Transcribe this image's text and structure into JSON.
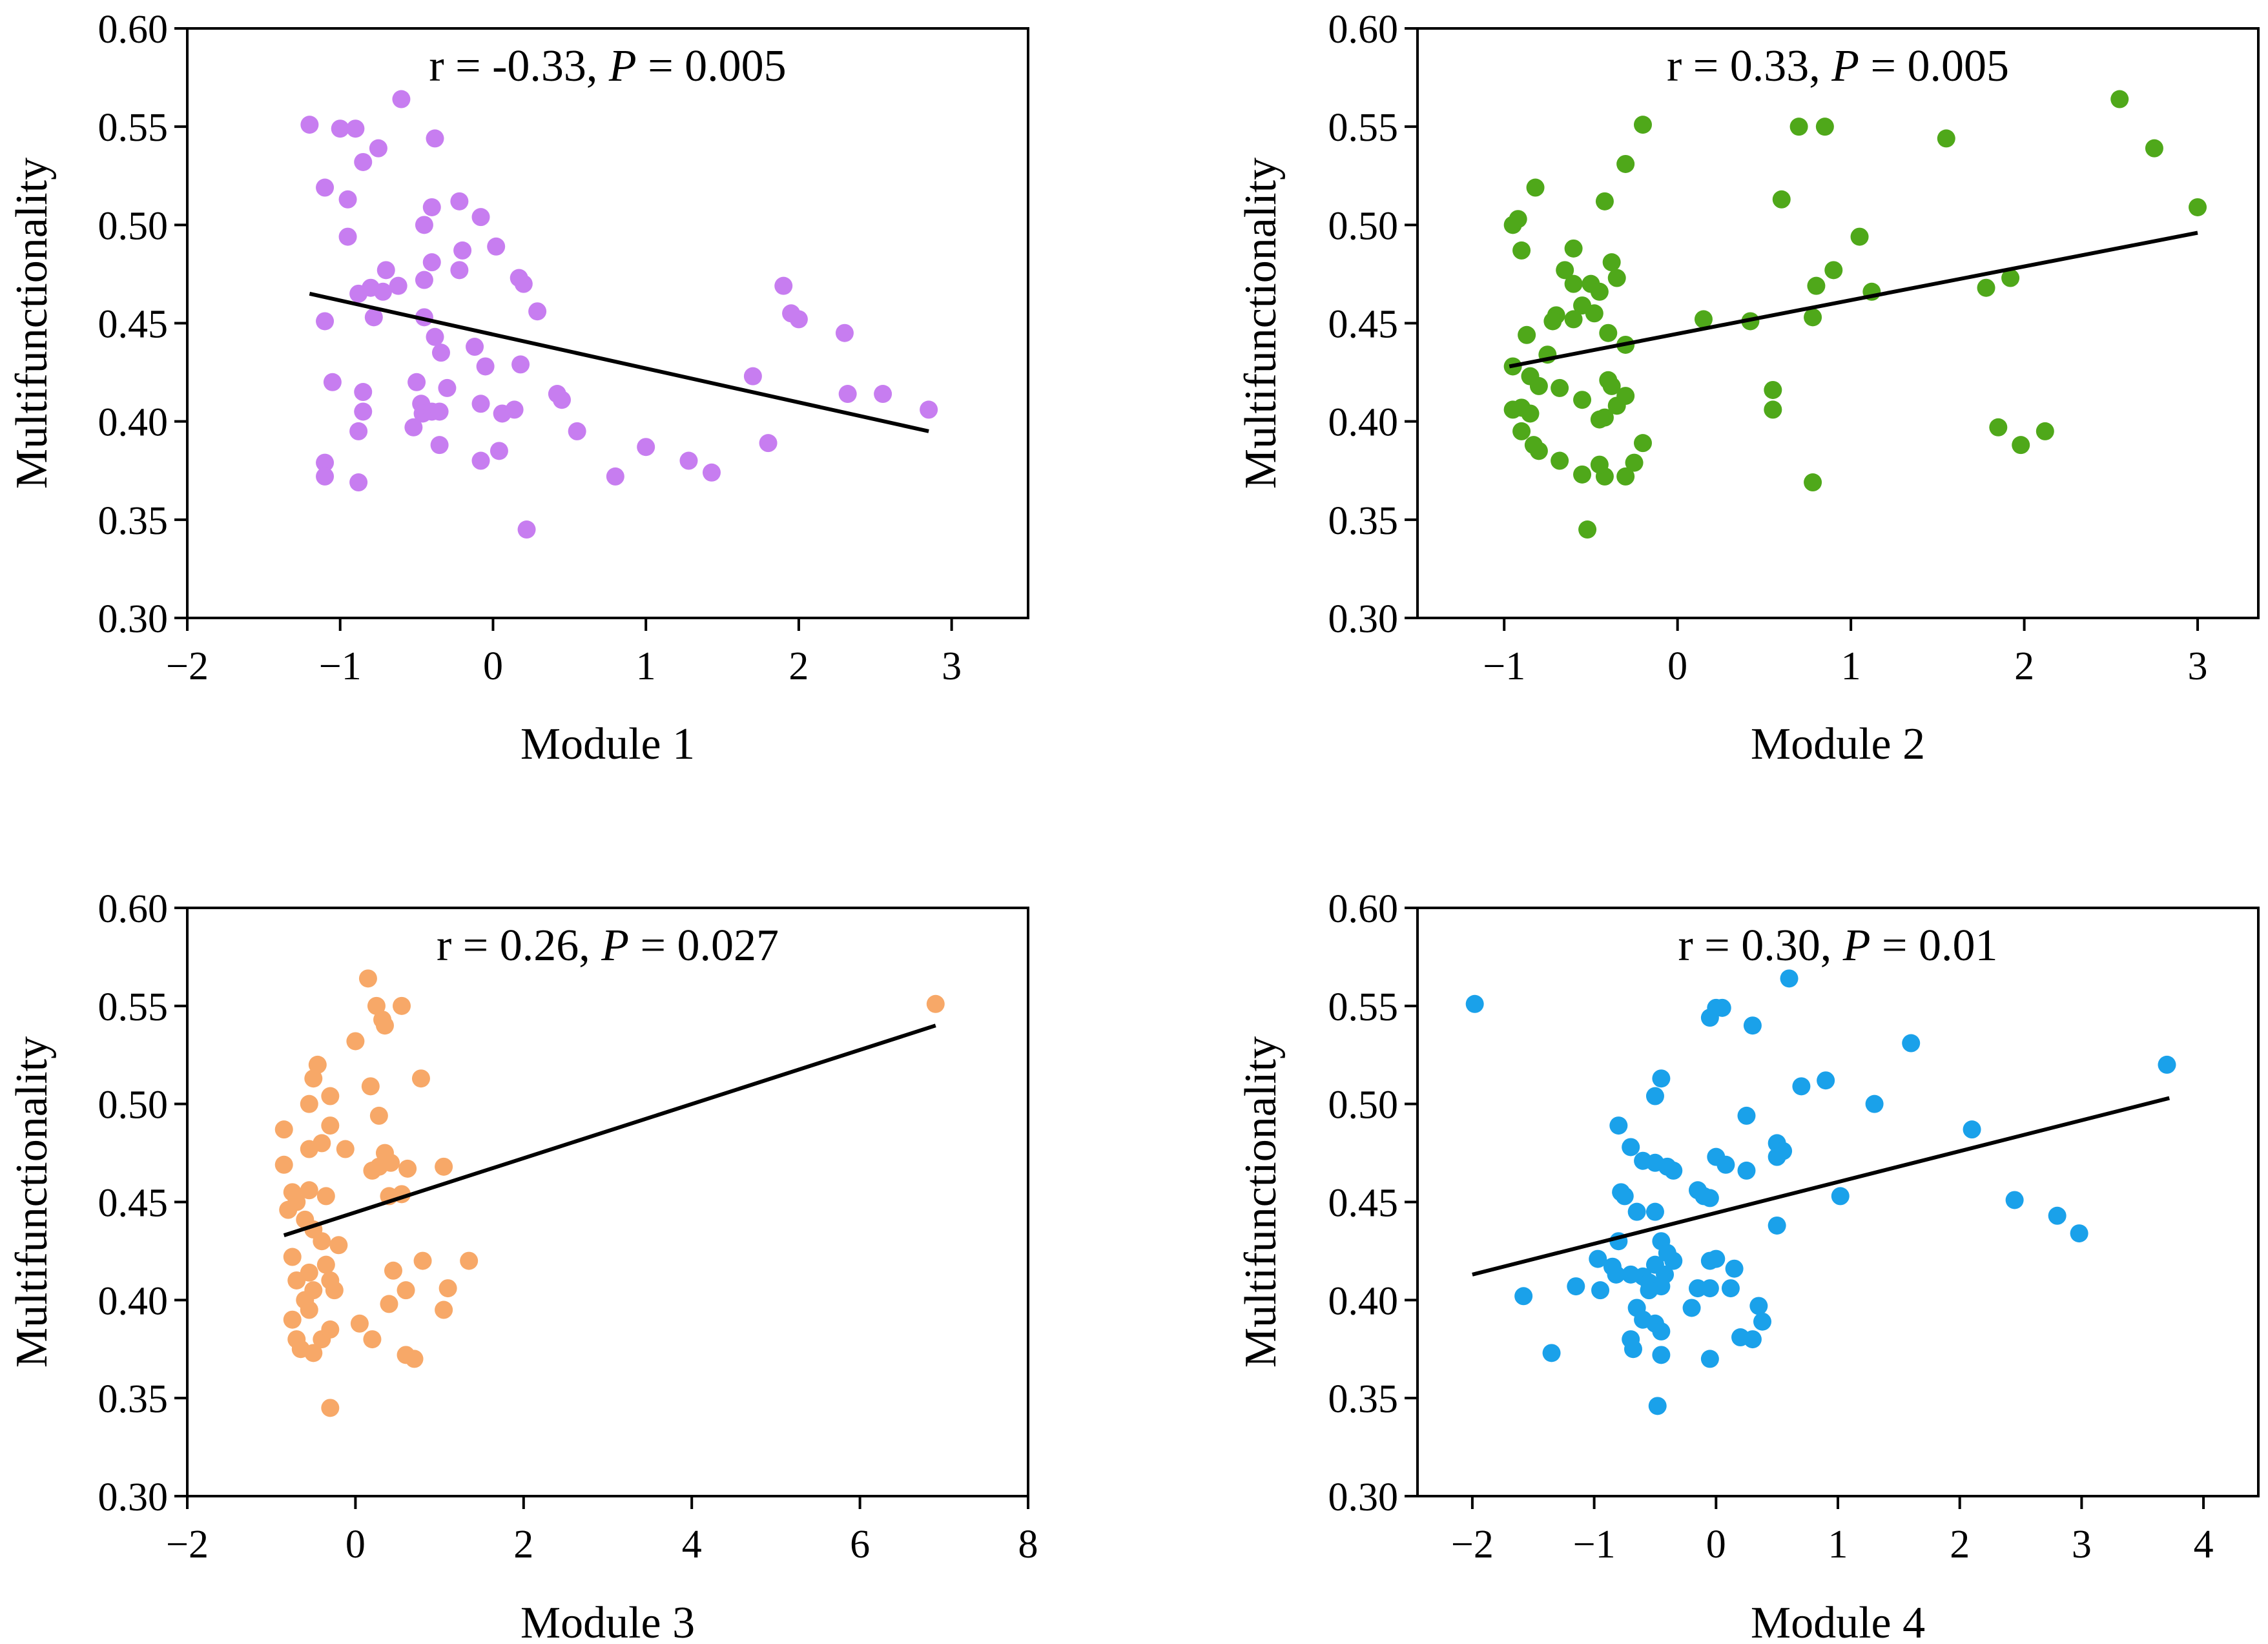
{
  "chart_data": [
    {
      "type": "scatter",
      "xlabel": "Module 1",
      "ylabel": "Multifunctionality",
      "xlim": [
        -2,
        3.5
      ],
      "ylim": [
        0.3,
        0.6
      ],
      "xticks": [
        "−2",
        "−1",
        "0",
        "1",
        "2",
        "3"
      ],
      "xtick_values": [
        -2,
        -1,
        0,
        1,
        2,
        3
      ],
      "yticks": [
        "0.30",
        "0.35",
        "0.40",
        "0.45",
        "0.50",
        "0.55",
        "0.60"
      ],
      "ytick_values": [
        0.3,
        0.35,
        0.4,
        0.45,
        0.5,
        0.55,
        0.6
      ],
      "annotation": {
        "prefix": "r = -0.33, ",
        "italic": "P",
        "suffix": " = 0.005"
      },
      "color": "#c77df0",
      "fit": {
        "x": [
          -1.2,
          2.85
        ],
        "y": [
          0.465,
          0.395
        ]
      },
      "points": [
        [
          -1.2,
          0.551
        ],
        [
          -0.6,
          0.564
        ],
        [
          -1.0,
          0.549
        ],
        [
          -0.9,
          0.549
        ],
        [
          -0.75,
          0.539
        ],
        [
          -0.38,
          0.544
        ],
        [
          -0.85,
          0.532
        ],
        [
          -1.1,
          0.519
        ],
        [
          -0.95,
          0.513
        ],
        [
          -0.22,
          0.512
        ],
        [
          -0.4,
          0.509
        ],
        [
          -0.45,
          0.5
        ],
        [
          -0.08,
          0.504
        ],
        [
          -0.95,
          0.494
        ],
        [
          0.02,
          0.489
        ],
        [
          -0.2,
          0.487
        ],
        [
          -0.4,
          0.481
        ],
        [
          -0.7,
          0.477
        ],
        [
          -0.22,
          0.477
        ],
        [
          -0.45,
          0.472
        ],
        [
          -0.62,
          0.469
        ],
        [
          0.17,
          0.473
        ],
        [
          0.2,
          0.47
        ],
        [
          -0.8,
          0.468
        ],
        [
          -0.72,
          0.466
        ],
        [
          -0.88,
          0.465
        ],
        [
          -0.78,
          0.453
        ],
        [
          -0.45,
          0.453
        ],
        [
          0.29,
          0.456
        ],
        [
          -1.1,
          0.451
        ],
        [
          -0.38,
          0.443
        ],
        [
          -0.34,
          0.435
        ],
        [
          -0.12,
          0.438
        ],
        [
          -0.05,
          0.428
        ],
        [
          0.18,
          0.429
        ],
        [
          -1.05,
          0.42
        ],
        [
          -0.5,
          0.42
        ],
        [
          -0.3,
          0.417
        ],
        [
          -0.85,
          0.415
        ],
        [
          0.42,
          0.414
        ],
        [
          0.45,
          0.411
        ],
        [
          -0.47,
          0.409
        ],
        [
          -0.08,
          0.409
        ],
        [
          -0.85,
          0.405
        ],
        [
          -0.46,
          0.404
        ],
        [
          -0.4,
          0.405
        ],
        [
          0.06,
          0.404
        ],
        [
          0.14,
          0.406
        ],
        [
          -0.35,
          0.405
        ],
        [
          -0.52,
          0.397
        ],
        [
          -0.88,
          0.395
        ],
        [
          0.55,
          0.395
        ],
        [
          -0.35,
          0.388
        ],
        [
          0.04,
          0.385
        ],
        [
          1.0,
          0.387
        ],
        [
          1.8,
          0.389
        ],
        [
          -1.1,
          0.379
        ],
        [
          -0.08,
          0.38
        ],
        [
          1.28,
          0.38
        ],
        [
          -1.1,
          0.372
        ],
        [
          -0.88,
          0.369
        ],
        [
          0.8,
          0.372
        ],
        [
          1.43,
          0.374
        ],
        [
          0.22,
          0.345
        ],
        [
          1.9,
          0.469
        ],
        [
          1.95,
          0.455
        ],
        [
          2.0,
          0.452
        ],
        [
          1.7,
          0.423
        ],
        [
          2.3,
          0.445
        ],
        [
          2.32,
          0.414
        ],
        [
          2.55,
          0.414
        ],
        [
          2.85,
          0.406
        ]
      ]
    },
    {
      "type": "scatter",
      "xlabel": "Module 2",
      "ylabel": "Multifunctionality",
      "xlim": [
        -1.5,
        3.35
      ],
      "ylim": [
        0.3,
        0.6
      ],
      "xticks": [
        "−1",
        "0",
        "1",
        "2",
        "3"
      ],
      "xtick_values": [
        -1,
        0,
        1,
        2,
        3
      ],
      "yticks": [
        "0.30",
        "0.35",
        "0.40",
        "0.45",
        "0.50",
        "0.55",
        "0.60"
      ],
      "ytick_values": [
        0.3,
        0.35,
        0.4,
        0.45,
        0.5,
        0.55,
        0.6
      ],
      "annotation": {
        "prefix": "r = 0.33, ",
        "italic": "P",
        "suffix": " = 0.005"
      },
      "color": "#4fa81a",
      "fit": {
        "x": [
          -0.97,
          3.0
        ],
        "y": [
          0.428,
          0.496
        ]
      },
      "points": [
        [
          -0.95,
          0.5
        ],
        [
          -0.92,
          0.503
        ],
        [
          -0.82,
          0.519
        ],
        [
          -0.9,
          0.487
        ],
        [
          -0.2,
          0.551
        ],
        [
          -0.3,
          0.531
        ],
        [
          -0.42,
          0.512
        ],
        [
          -0.38,
          0.481
        ],
        [
          -0.35,
          0.473
        ],
        [
          -0.6,
          0.488
        ],
        [
          -0.65,
          0.477
        ],
        [
          -0.6,
          0.47
        ],
        [
          -0.5,
          0.47
        ],
        [
          -0.45,
          0.466
        ],
        [
          -0.55,
          0.459
        ],
        [
          -0.7,
          0.454
        ],
        [
          -0.72,
          0.451
        ],
        [
          -0.6,
          0.452
        ],
        [
          -0.48,
          0.455
        ],
        [
          -0.4,
          0.445
        ],
        [
          -0.3,
          0.439
        ],
        [
          -0.75,
          0.434
        ],
        [
          -0.87,
          0.444
        ],
        [
          -0.95,
          0.428
        ],
        [
          -0.85,
          0.423
        ],
        [
          -0.8,
          0.418
        ],
        [
          -0.68,
          0.417
        ],
        [
          -0.4,
          0.421
        ],
        [
          -0.38,
          0.418
        ],
        [
          -0.3,
          0.413
        ],
        [
          -0.35,
          0.408
        ],
        [
          -0.55,
          0.411
        ],
        [
          -0.95,
          0.406
        ],
        [
          -0.9,
          0.407
        ],
        [
          -0.85,
          0.404
        ],
        [
          -0.42,
          0.402
        ],
        [
          -0.45,
          0.401
        ],
        [
          -0.9,
          0.395
        ],
        [
          -0.83,
          0.388
        ],
        [
          -0.8,
          0.385
        ],
        [
          -0.2,
          0.389
        ],
        [
          -0.25,
          0.379
        ],
        [
          -0.68,
          0.38
        ],
        [
          -0.55,
          0.373
        ],
        [
          -0.3,
          0.372
        ],
        [
          -0.42,
          0.372
        ],
        [
          -0.45,
          0.378
        ],
        [
          -0.52,
          0.345
        ],
        [
          0.15,
          0.452
        ],
        [
          0.42,
          0.451
        ],
        [
          0.55,
          0.416
        ],
        [
          0.55,
          0.406
        ],
        [
          0.6,
          0.513
        ],
        [
          0.7,
          0.55
        ],
        [
          0.85,
          0.55
        ],
        [
          0.8,
          0.469
        ],
        [
          0.9,
          0.477
        ],
        [
          0.78,
          0.453
        ],
        [
          0.78,
          0.369
        ],
        [
          1.05,
          0.494
        ],
        [
          1.12,
          0.466
        ],
        [
          1.55,
          0.544
        ],
        [
          1.78,
          0.468
        ],
        [
          1.85,
          0.397
        ],
        [
          1.92,
          0.473
        ],
        [
          1.98,
          0.388
        ],
        [
          2.12,
          0.395
        ],
        [
          2.55,
          0.564
        ],
        [
          2.75,
          0.539
        ],
        [
          3.0,
          0.509
        ]
      ]
    },
    {
      "type": "scatter",
      "xlabel": "Module 3",
      "ylabel": "Multifunctionality",
      "xlim": [
        -2,
        8
      ],
      "ylim": [
        0.3,
        0.6
      ],
      "xticks": [
        "−2",
        "0",
        "2",
        "4",
        "6",
        "8"
      ],
      "xtick_values": [
        -2,
        0,
        2,
        4,
        6,
        8
      ],
      "yticks": [
        "0.30",
        "0.35",
        "0.40",
        "0.45",
        "0.50",
        "0.55",
        "0.60"
      ],
      "ytick_values": [
        0.3,
        0.35,
        0.4,
        0.45,
        0.5,
        0.55,
        0.6
      ],
      "annotation": {
        "prefix": "r = 0.26, ",
        "italic": "P",
        "suffix": " = 0.027"
      },
      "color": "#f7a868",
      "fit": {
        "x": [
          -0.85,
          6.9
        ],
        "y": [
          0.433,
          0.54
        ]
      },
      "points": [
        [
          0.15,
          0.564
        ],
        [
          0.25,
          0.55
        ],
        [
          0.32,
          0.543
        ],
        [
          0.35,
          0.54
        ],
        [
          0.55,
          0.55
        ],
        [
          0.0,
          0.532
        ],
        [
          -0.45,
          0.52
        ],
        [
          -0.5,
          0.513
        ],
        [
          -0.3,
          0.504
        ],
        [
          0.18,
          0.509
        ],
        [
          0.78,
          0.513
        ],
        [
          -0.55,
          0.5
        ],
        [
          0.28,
          0.494
        ],
        [
          -0.85,
          0.487
        ],
        [
          -0.4,
          0.48
        ],
        [
          -0.3,
          0.489
        ],
        [
          -0.55,
          0.477
        ],
        [
          -0.12,
          0.477
        ],
        [
          0.35,
          0.475
        ],
        [
          0.42,
          0.47
        ],
        [
          0.2,
          0.466
        ],
        [
          0.28,
          0.468
        ],
        [
          -0.85,
          0.469
        ],
        [
          -0.75,
          0.455
        ],
        [
          -0.55,
          0.456
        ],
        [
          -0.35,
          0.453
        ],
        [
          -0.7,
          0.45
        ],
        [
          -0.8,
          0.446
        ],
        [
          0.62,
          0.467
        ],
        [
          1.05,
          0.468
        ],
        [
          0.4,
          0.453
        ],
        [
          0.55,
          0.454
        ],
        [
          -0.6,
          0.441
        ],
        [
          -0.5,
          0.436
        ],
        [
          -0.4,
          0.43
        ],
        [
          -0.2,
          0.428
        ],
        [
          -0.75,
          0.422
        ],
        [
          -0.55,
          0.414
        ],
        [
          -0.35,
          0.418
        ],
        [
          -0.3,
          0.41
        ],
        [
          0.8,
          0.42
        ],
        [
          1.35,
          0.42
        ],
        [
          0.45,
          0.415
        ],
        [
          -0.7,
          0.41
        ],
        [
          -0.5,
          0.405
        ],
        [
          -0.25,
          0.405
        ],
        [
          -0.6,
          0.4
        ],
        [
          0.6,
          0.405
        ],
        [
          1.1,
          0.406
        ],
        [
          0.4,
          0.398
        ],
        [
          -0.55,
          0.395
        ],
        [
          1.05,
          0.395
        ],
        [
          -0.75,
          0.39
        ],
        [
          0.05,
          0.388
        ],
        [
          -0.7,
          0.38
        ],
        [
          -0.4,
          0.38
        ],
        [
          -0.3,
          0.385
        ],
        [
          0.2,
          0.38
        ],
        [
          -0.65,
          0.375
        ],
        [
          -0.5,
          0.373
        ],
        [
          0.6,
          0.372
        ],
        [
          0.7,
          0.37
        ],
        [
          -0.3,
          0.345
        ],
        [
          6.9,
          0.551
        ]
      ]
    },
    {
      "type": "scatter",
      "xlabel": "Module 4",
      "ylabel": "Multifunctionality",
      "xlim": [
        -2.45,
        4.45
      ],
      "ylim": [
        0.3,
        0.6
      ],
      "xticks": [
        "−2",
        "−1",
        "0",
        "1",
        "2",
        "3",
        "4"
      ],
      "xtick_values": [
        -2,
        -1,
        0,
        1,
        2,
        3,
        4
      ],
      "yticks": [
        "0.30",
        "0.35",
        "0.40",
        "0.45",
        "0.50",
        "0.55",
        "0.60"
      ],
      "ytick_values": [
        0.3,
        0.35,
        0.4,
        0.45,
        0.5,
        0.55,
        0.6
      ],
      "annotation": {
        "prefix": "r = 0.30, ",
        "italic": "P",
        "suffix": " = 0.01"
      },
      "color": "#1aa1ea",
      "fit": {
        "x": [
          -2.0,
          3.72
        ],
        "y": [
          0.413,
          0.503
        ]
      },
      "points": [
        [
          -1.98,
          0.551
        ],
        [
          -1.58,
          0.402
        ],
        [
          -1.35,
          0.373
        ],
        [
          -1.15,
          0.407
        ],
        [
          -0.95,
          0.405
        ],
        [
          -0.97,
          0.421
        ],
        [
          -0.8,
          0.489
        ],
        [
          -0.78,
          0.455
        ],
        [
          -0.75,
          0.453
        ],
        [
          -0.8,
          0.43
        ],
        [
          -0.85,
          0.417
        ],
        [
          -0.82,
          0.413
        ],
        [
          -0.7,
          0.478
        ],
        [
          -0.6,
          0.471
        ],
        [
          -0.5,
          0.47
        ],
        [
          -0.4,
          0.468
        ],
        [
          -0.35,
          0.466
        ],
        [
          -0.5,
          0.445
        ],
        [
          -0.65,
          0.445
        ],
        [
          -0.45,
          0.43
        ],
        [
          -0.4,
          0.424
        ],
        [
          -0.35,
          0.42
        ],
        [
          -0.5,
          0.418
        ],
        [
          -0.6,
          0.412
        ],
        [
          -0.7,
          0.413
        ],
        [
          -0.55,
          0.409
        ],
        [
          -0.45,
          0.407
        ],
        [
          -0.42,
          0.413
        ],
        [
          -0.55,
          0.405
        ],
        [
          -0.65,
          0.396
        ],
        [
          -0.6,
          0.39
        ],
        [
          -0.5,
          0.388
        ],
        [
          -0.45,
          0.384
        ],
        [
          -0.7,
          0.38
        ],
        [
          -0.68,
          0.375
        ],
        [
          -0.45,
          0.372
        ],
        [
          -0.48,
          0.346
        ],
        [
          -0.5,
          0.504
        ],
        [
          -0.45,
          0.513
        ],
        [
          -0.05,
          0.544
        ],
        [
          0.0,
          0.549
        ],
        [
          0.05,
          0.549
        ],
        [
          0.3,
          0.54
        ],
        [
          0.6,
          0.564
        ],
        [
          0.7,
          0.509
        ],
        [
          0.9,
          0.512
        ],
        [
          0.25,
          0.494
        ],
        [
          0.5,
          0.48
        ],
        [
          0.55,
          0.476
        ],
        [
          0.5,
          0.473
        ],
        [
          0.0,
          0.473
        ],
        [
          0.08,
          0.469
        ],
        [
          0.25,
          0.466
        ],
        [
          -0.15,
          0.456
        ],
        [
          -0.05,
          0.452
        ],
        [
          -0.1,
          0.453
        ],
        [
          0.5,
          0.438
        ],
        [
          0.0,
          0.421
        ],
        [
          -0.05,
          0.42
        ],
        [
          0.15,
          0.416
        ],
        [
          0.12,
          0.406
        ],
        [
          -0.05,
          0.406
        ],
        [
          -0.15,
          0.406
        ],
        [
          0.35,
          0.397
        ],
        [
          0.38,
          0.389
        ],
        [
          -0.2,
          0.396
        ],
        [
          0.2,
          0.381
        ],
        [
          0.3,
          0.38
        ],
        [
          -0.05,
          0.37
        ],
        [
          1.02,
          0.453
        ],
        [
          1.3,
          0.5
        ],
        [
          1.6,
          0.531
        ],
        [
          2.1,
          0.487
        ],
        [
          2.45,
          0.451
        ],
        [
          2.8,
          0.443
        ],
        [
          2.98,
          0.434
        ],
        [
          3.7,
          0.52
        ]
      ]
    }
  ]
}
